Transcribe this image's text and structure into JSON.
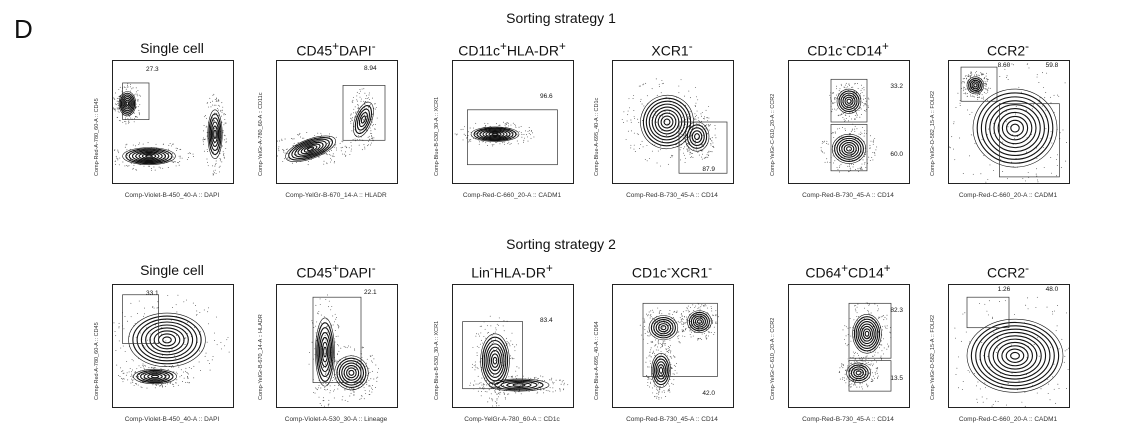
{
  "panel_letter": "D",
  "chart_data": [
    {
      "type": "scatter",
      "group": "Sorting strategy 1",
      "title": "Sorting strategy 1",
      "plots": [
        {
          "title_html": "Single cell",
          "xlabel": "Comp-Violet-B-450_40-A :: DAPI",
          "ylabel": "Comp-Red-A-780_60-A :: CD45",
          "gates": [
            "27.3"
          ],
          "population": "single"
        },
        {
          "title_html": "CD45<sup>+</sup>DAPI<sup>-</sup>",
          "xlabel": "Comp-YelGr-B-670_14-A :: HLADR",
          "ylabel": "Comp-YelGr-A-780_60-A :: CD11c",
          "gates": [
            "8.94"
          ],
          "population": "diag"
        },
        {
          "title_html": "CD11c<sup>+</sup>HLA-DR<sup>+</sup>",
          "xlabel": "Comp-Red-C-660_20-A :: CADM1",
          "ylabel": "Comp-Blue-B-530_30-A :: XCR1",
          "gates": [
            "96.6"
          ],
          "population": "spread"
        },
        {
          "title_html": "XCR1<sup>-</sup>",
          "xlabel": "Comp-Red-B-730_45-A :: CD14",
          "ylabel": "Comp-Blue-A-695_40-A :: CD1c",
          "gates": [
            "87.9"
          ],
          "population": "blob"
        },
        {
          "title_html": "CD1c<sup>-</sup>CD14<sup>+</sup>",
          "xlabel": "Comp-Red-B-730_45-A :: CD14",
          "ylabel": "Comp-YelGr-C-610_20-A :: CCR2",
          "gates": [
            "33.2",
            "60.0"
          ],
          "population": "column"
        },
        {
          "title_html": "CCR2<sup>-</sup>",
          "xlabel": "Comp-Red-C-660_20-A :: CADM1",
          "ylabel": "Comp-YelGr-D-582_15-A :: FOLR2",
          "gates": [
            "8.60",
            "59.8"
          ],
          "population": "wide"
        }
      ]
    },
    {
      "type": "scatter",
      "group": "Sorting strategy 2",
      "title": "Sorting strategy 2",
      "plots": [
        {
          "title_html": "Single cell",
          "xlabel": "Comp-Violet-B-450_40-A :: DAPI",
          "ylabel": "Comp-Red-A-780_60-A :: CD45",
          "gates": [
            "33.1"
          ],
          "population": "single2"
        },
        {
          "title_html": "CD45<sup>+</sup>DAPI<sup>-</sup>",
          "xlabel": "Comp-Violet-A-530_30-A :: Lineage",
          "ylabel": "Comp-YelGr-B-670_14-A :: HLADR",
          "gates": [
            "22.1"
          ],
          "population": "twin"
        },
        {
          "title_html": "Lin<sup>-</sup>HLA-DR<sup>+</sup>",
          "xlabel": "Comp-YelGr-A-780_60-A :: CD1c",
          "ylabel": "Comp-Blue-B-530_30-A :: XCR1",
          "gates": [
            "83.4"
          ],
          "population": "lin"
        },
        {
          "title_html": "CD1c<sup>-</sup>XCR1<sup>-</sup>",
          "xlabel": "Comp-Red-B-730_45-A :: CD14",
          "ylabel": "Comp-Blue-A-695_40-A :: CD64",
          "gates": [
            "42.0"
          ],
          "population": "multi"
        },
        {
          "title_html": "CD64<sup>+</sup>CD14<sup>+</sup>",
          "xlabel": "Comp-Red-B-730_45-A :: CD14",
          "ylabel": "Comp-YelGr-C-610_20-A :: CCR2",
          "gates": [
            "82.3",
            "13.5"
          ],
          "population": "column2"
        },
        {
          "title_html": "CCR2<sup>-</sup>",
          "xlabel": "Comp-Red-C-660_20-A :: CADM1",
          "ylabel": "Comp-YelGr-D-582_15-A :: FOLR2",
          "gates": [
            "1.26",
            "48.0"
          ],
          "population": "cloud"
        }
      ]
    }
  ]
}
